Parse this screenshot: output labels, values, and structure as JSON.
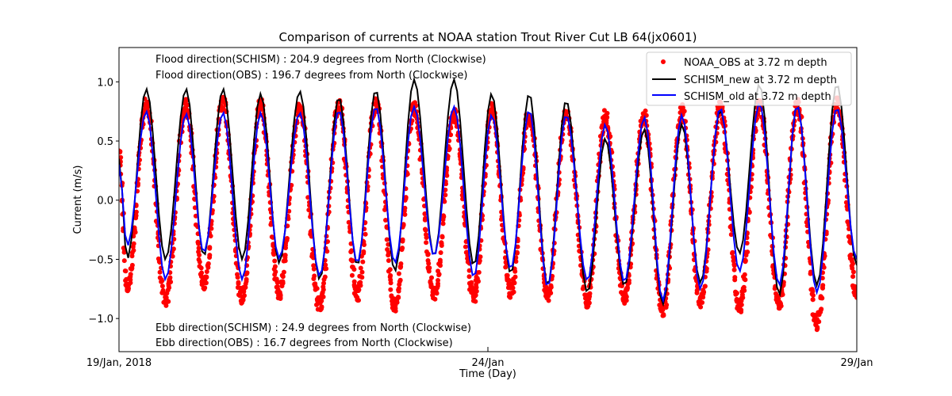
{
  "chart_data": {
    "type": "line",
    "title": "Comparison of currents at NOAA station Trout River Cut LB 64(jx0601)",
    "xlabel": "Time (Day)",
    "ylabel": "Current (m/s)",
    "xlim": [
      0,
      10
    ],
    "ylim": [
      -1.28,
      1.29
    ],
    "x_ticks": [
      {
        "value": 0,
        "label": "19/Jan, 2018"
      },
      {
        "value": 5,
        "label": "24/Jan"
      },
      {
        "value": 10,
        "label": "29/Jan"
      }
    ],
    "y_ticks": [
      {
        "value": 1.0,
        "label": "1.0"
      },
      {
        "value": 0.5,
        "label": "0.5"
      },
      {
        "value": 0.0,
        "label": "0.0"
      },
      {
        "value": -0.5,
        "label": "−0.5"
      },
      {
        "value": -1.0,
        "label": "−1.0"
      }
    ],
    "grid": false,
    "legend_position": "top-right",
    "annotations": {
      "flood_schism": "Flood direction(SCHISM) : 204.9 degrees from North (Clockwise)",
      "flood_obs": "Flood direction(OBS) : 196.7 degrees from North (Clockwise)",
      "ebb_schism": "Ebb direction(SCHISM) : 24.9 degrees from North (Clockwise)",
      "ebb_obs": "Ebb direction(OBS) : 16.7 degrees from North (Clockwise)"
    },
    "start_value": {
      "new": 0.35,
      "old": 0.3,
      "obs": 0.4
    },
    "end_value": {
      "new": -0.55,
      "old": -0.5,
      "obs": -0.8
    },
    "extrema_times_days": [
      0.11,
      0.37,
      0.63,
      0.91,
      1.15,
      1.41,
      1.67,
      1.92,
      2.17,
      2.45,
      2.72,
      2.98,
      3.23,
      3.48,
      3.74,
      4.0,
      4.27,
      4.54,
      4.81,
      5.05,
      5.31,
      5.56,
      5.81,
      6.06,
      6.35,
      6.59,
      6.85,
      7.12,
      7.37,
      7.63,
      7.88,
      8.15,
      8.41,
      8.68,
      8.95,
      9.19,
      9.46,
      9.73
    ],
    "series": [
      {
        "name": "NOAA_OBS at 3.72 m depth",
        "style": "dots",
        "color": "#ff0000",
        "extrema": [
          -0.75,
          0.82,
          -0.85,
          0.8,
          -0.72,
          0.82,
          -0.82,
          0.8,
          -0.78,
          0.78,
          -0.9,
          0.8,
          -0.8,
          0.82,
          -0.9,
          0.78,
          -0.8,
          0.72,
          -0.82,
          0.76,
          -0.78,
          0.72,
          -0.82,
          0.74,
          -0.85,
          0.72,
          -0.82,
          0.7,
          -0.95,
          0.76,
          -0.85,
          0.78,
          -0.9,
          0.8,
          -0.88,
          0.82,
          -1.05,
          0.82
        ]
      },
      {
        "name": "SCHISM_new at 3.72 m depth",
        "style": "line",
        "color": "#000000",
        "extrema": [
          -0.5,
          0.94,
          -0.5,
          0.94,
          -0.47,
          0.94,
          -0.5,
          0.9,
          -0.53,
          0.92,
          -0.67,
          0.87,
          -0.55,
          0.93,
          -0.6,
          1.02,
          -0.47,
          1.02,
          -0.55,
          0.9,
          -0.62,
          0.9,
          -0.72,
          0.84,
          -0.78,
          0.52,
          -0.72,
          0.6,
          -0.88,
          0.64,
          -0.7,
          0.76,
          -0.45,
          0.98,
          -0.8,
          0.8,
          -0.72,
          0.98
        ]
      },
      {
        "name": "SCHISM_old at 3.72 m depth",
        "style": "line",
        "color": "#0000ff",
        "extrema": [
          -0.39,
          0.75,
          -0.67,
          0.73,
          -0.44,
          0.74,
          -0.67,
          0.74,
          -0.49,
          0.74,
          -0.64,
          0.76,
          -0.53,
          0.79,
          -0.53,
          0.79,
          -0.47,
          0.79,
          -0.65,
          0.72,
          -0.58,
          0.76,
          -0.73,
          0.72,
          -0.68,
          0.64,
          -0.69,
          0.7,
          -0.85,
          0.72,
          -0.75,
          0.78,
          -0.6,
          0.82,
          -0.72,
          0.8,
          -0.78,
          0.78
        ]
      }
    ]
  }
}
